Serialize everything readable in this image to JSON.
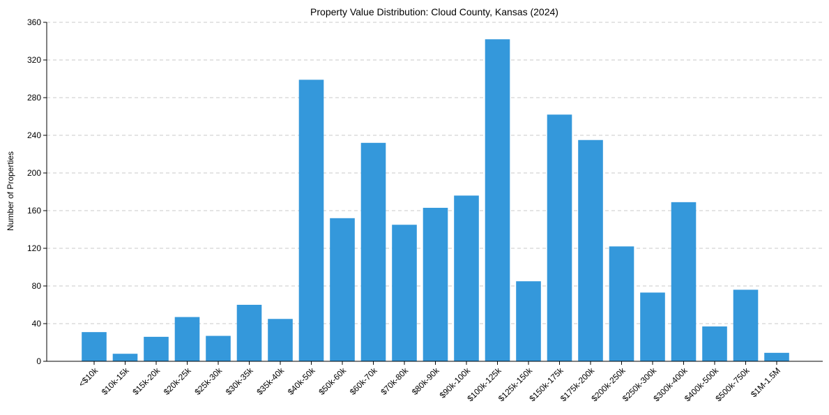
{
  "chart_data": {
    "type": "bar",
    "title": "Property Value Distribution: Cloud County, Kansas (2024)",
    "xlabel": "",
    "ylabel": "Number of Properties",
    "ylim": [
      0,
      360
    ],
    "yticks": [
      0,
      40,
      80,
      120,
      160,
      200,
      240,
      280,
      320,
      360
    ],
    "grid": true,
    "bar_color": "#3498db",
    "categories": [
      "<$10k",
      "$10k-15k",
      "$15k-20k",
      "$20k-25k",
      "$25k-30k",
      "$30k-35k",
      "$35k-40k",
      "$40k-50k",
      "$50k-60k",
      "$60k-70k",
      "$70k-80k",
      "$80k-90k",
      "$90k-100k",
      "$100k-125k",
      "$125k-150k",
      "$150k-175k",
      "$175k-200k",
      "$200k-250k",
      "$250k-300k",
      "$300k-400k",
      "$400k-500k",
      "$500k-750k",
      "$1M-1.5M"
    ],
    "values": [
      31,
      8,
      26,
      47,
      27,
      60,
      45,
      299,
      152,
      232,
      145,
      163,
      176,
      342,
      85,
      262,
      235,
      122,
      73,
      169,
      37,
      76,
      9
    ]
  }
}
